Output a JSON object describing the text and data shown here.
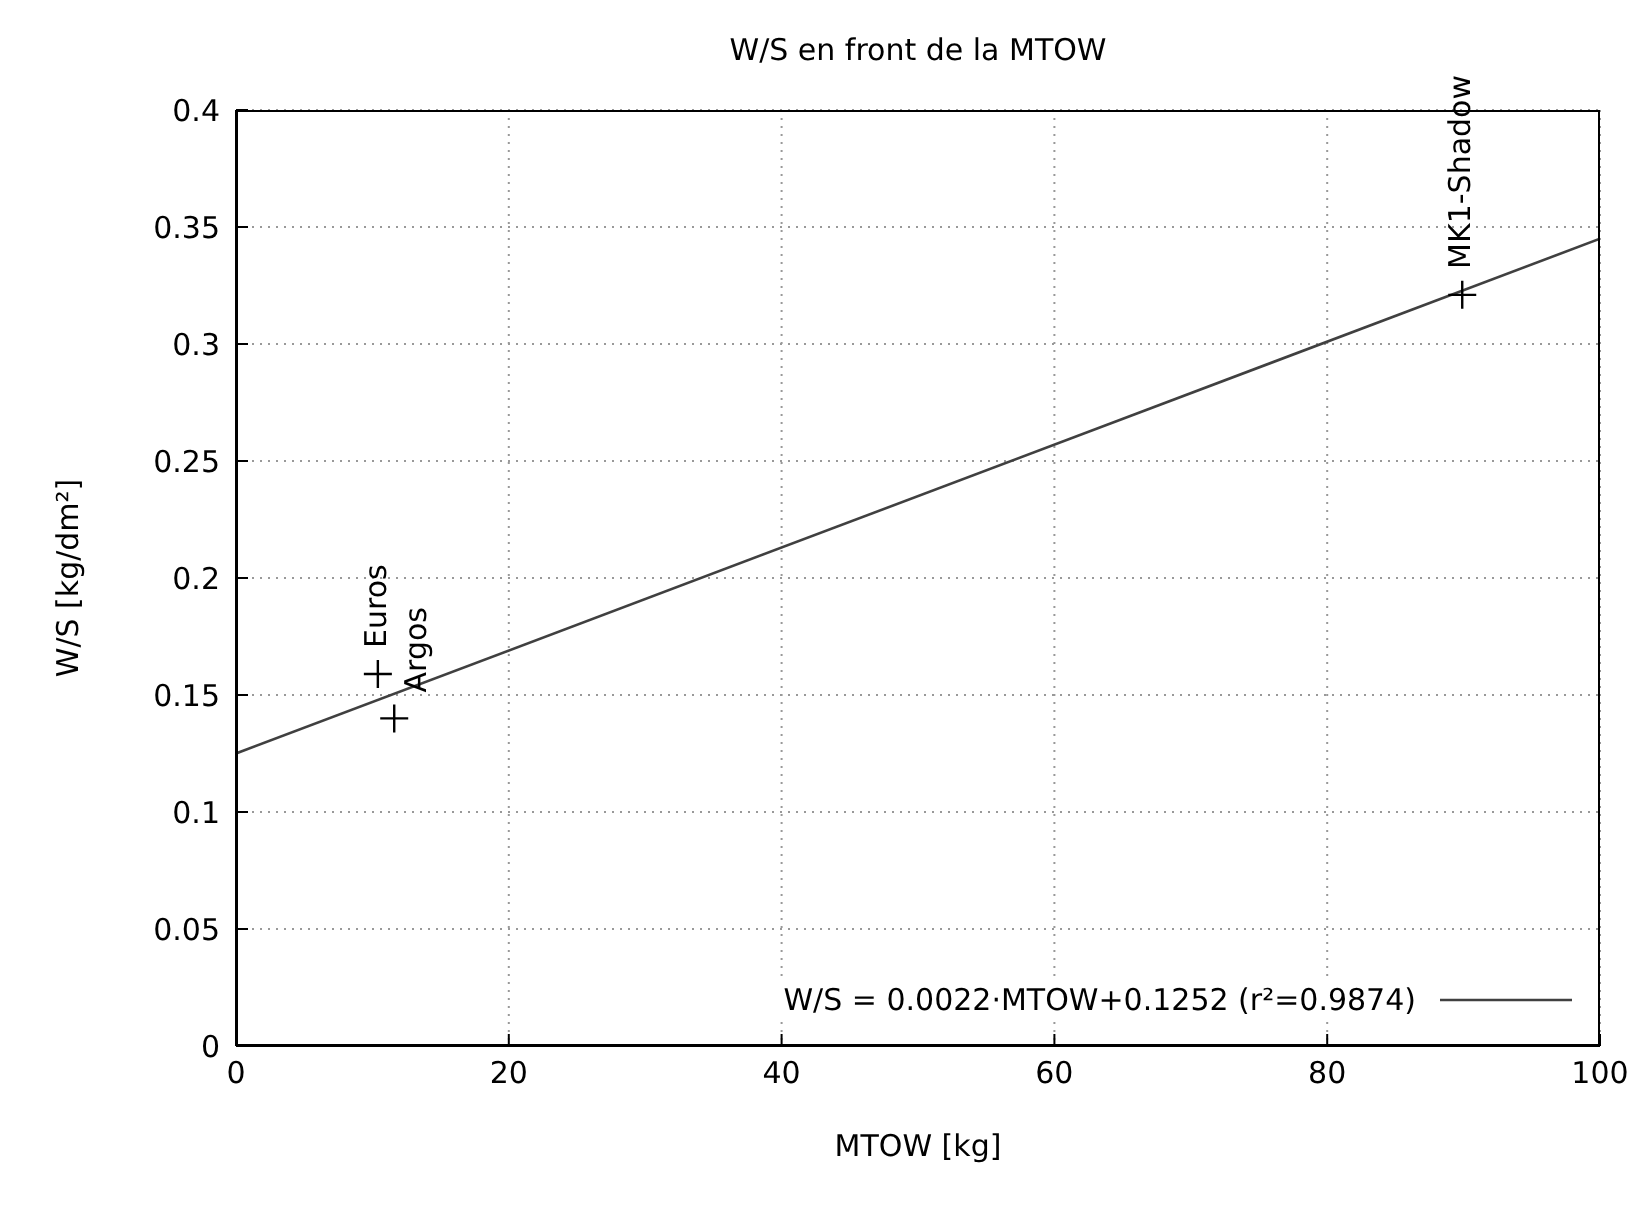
{
  "chart_data": {
    "type": "scatter",
    "title": "W/S en front de la MTOW",
    "xlabel": "MTOW [kg]",
    "ylabel": "W/S [kg/dm²]",
    "series": [
      {
        "color": "#000000",
        "marker": "cross",
        "x": [
          10.4,
          11.6,
          89.9
        ],
        "values": [
          0.159,
          0.14,
          0.321
        ]
      },
      {
        "type": "line",
        "marker": "none",
        "name": "W/S = 0.0022·MTOW+0.1252 (r²=0.9874)",
        "color": "#404040",
        "x": [
          0,
          100
        ],
        "values": [
          0.125,
          0.345
        ]
      }
    ],
    "annotations": [
      {
        "text": "Euros",
        "x": 10.4,
        "y": 0.159
      },
      {
        "text": "Argos",
        "x": 11.6,
        "y": 0.14
      },
      {
        "text": "MK1-Shadow",
        "x": 89.9,
        "y": 0.321
      }
    ],
    "line_style": "solid",
    "grid": true,
    "legend": "bottom right",
    "xlim": [
      0,
      100
    ],
    "xticks": [
      0,
      20,
      40,
      60,
      80,
      100
    ],
    "ylim": [
      0,
      0.4
    ],
    "yticks": [
      0,
      0.05,
      0.1,
      0.15,
      0.2,
      0.25,
      0.3,
      0.35,
      0.4
    ]
  }
}
